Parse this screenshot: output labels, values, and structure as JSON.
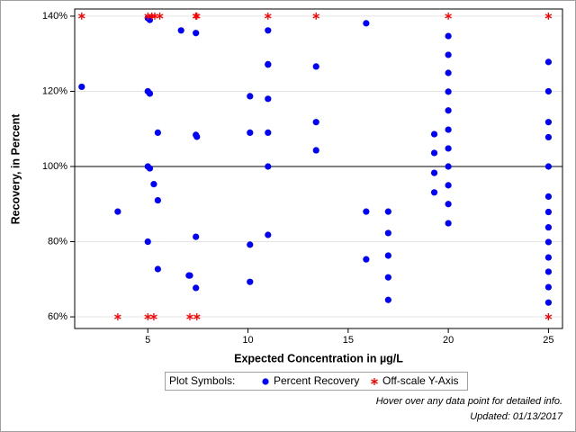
{
  "chart_data": {
    "type": "scatter",
    "x_label": "Expected Concentration in µg/L",
    "y_label": "Recovery, in Percent",
    "xlim": [
      1.35,
      25.7
    ],
    "ylim": [
      56.9,
      141.9
    ],
    "xticks": [
      5,
      10,
      15,
      20,
      25
    ],
    "yticks": [
      {
        "value": 60,
        "label": "60%"
      },
      {
        "value": 80,
        "label": "80%"
      },
      {
        "value": 100,
        "label": "100%"
      },
      {
        "value": 120,
        "label": "120%"
      },
      {
        "value": 140,
        "label": "140%"
      }
    ],
    "grid": true,
    "reference_line": 100,
    "legend_title": "Plot Symbols:",
    "series": [
      {
        "name": "Percent Recovery",
        "color": "#0000ff",
        "marker": "circle",
        "x": [
          1.7,
          3.5,
          5.0,
          5.1,
          5.0,
          5.1,
          5.0,
          5.1,
          5.3,
          5.5,
          5.5,
          5.0,
          5.5,
          6.66,
          7.4,
          7.4,
          7.45,
          7.4,
          7.05,
          7.1,
          7.4,
          10.1,
          10.1,
          10.1,
          10.1,
          11,
          11,
          11,
          11,
          11,
          11,
          11,
          13.4,
          13.4,
          13.4,
          15.9,
          15.9,
          15.9,
          17,
          17,
          17,
          17,
          17,
          19.3,
          19.3,
          19.3,
          19.3,
          20,
          20,
          20,
          20,
          20,
          20,
          20,
          20,
          20,
          20,
          20,
          25,
          25,
          25,
          25,
          25,
          25,
          25,
          25,
          25,
          25,
          25,
          25,
          25
        ],
        "values": [
          121.2,
          88,
          139.5,
          139,
          120,
          119.4,
          100,
          99.5,
          95.3,
          109,
          91,
          80,
          72.7,
          136.2,
          135.5,
          108.4,
          107.9,
          81.3,
          71,
          71,
          67.7,
          118.7,
          109,
          79.2,
          69.3,
          136.2,
          127.2,
          127.1,
          118,
          109,
          100,
          81.8,
          126.6,
          111.8,
          104.3,
          138.1,
          88,
          75.3,
          88,
          82.3,
          76.3,
          70.5,
          64.5,
          108.6,
          103.6,
          98.3,
          93.1,
          134.7,
          129.7,
          124.9,
          119.9,
          114.9,
          109.8,
          104.8,
          100,
          95,
          90,
          84.9,
          127.8,
          120,
          111.8,
          107.8,
          100,
          92,
          87.9,
          83.8,
          79.9,
          75.8,
          72,
          67.9,
          63.8
        ]
      },
      {
        "name": "Off-scale Y-Axis",
        "color": "#ff0000",
        "marker": "asterisk",
        "x": [
          1.7,
          5.0,
          5.2,
          5.35,
          5.6,
          7.4,
          7.45,
          11,
          13.4,
          20,
          25,
          3.5,
          5.0,
          5.3,
          7.1,
          7.45,
          25
        ],
        "values": [
          140,
          140,
          140,
          140,
          140,
          140,
          140,
          140,
          140,
          140,
          140,
          60,
          60,
          60,
          60,
          60,
          60
        ]
      }
    ],
    "notes": [
      "Hover over any data point for detailed info.",
      "Updated: 01/13/2017"
    ]
  }
}
